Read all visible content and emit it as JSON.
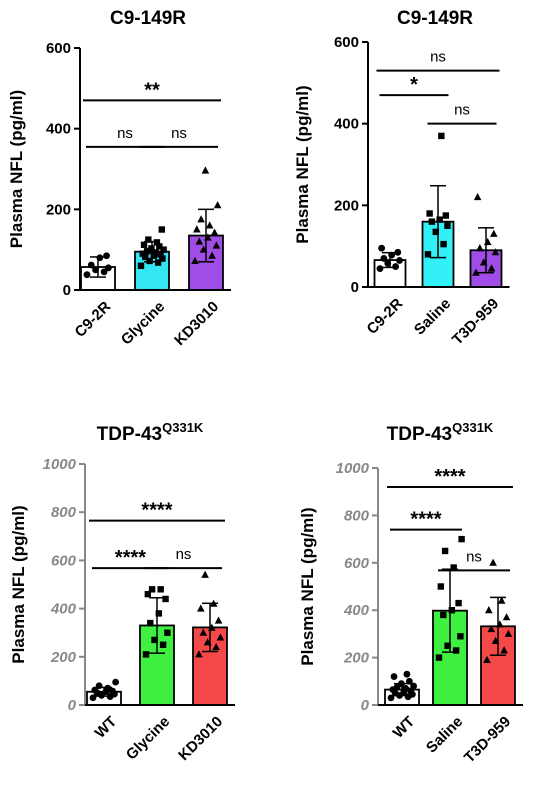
{
  "chart_data": [
    {
      "type": "bar",
      "title": "C9-149R",
      "title_sup": "",
      "ylabel": "Plasma NFL (pg/ml)",
      "ylim": [
        0,
        600
      ],
      "yticks": [
        "0",
        "200",
        "400",
        "600"
      ],
      "axis_color": "#000000",
      "categories": [
        "C9-2R",
        "Glycine",
        "KD3010"
      ],
      "colors": [
        "#ffffff",
        "#33e6f2",
        "#a04ce6"
      ],
      "markers": [
        "circle",
        "square",
        "triangle"
      ],
      "means": [
        57,
        95,
        135
      ],
      "sd": [
        25,
        25,
        65
      ],
      "points": [
        [
          38,
          45,
          50,
          55,
          62,
          80,
          85
        ],
        [
          60,
          68,
          72,
          78,
          82,
          85,
          88,
          90,
          93,
          96,
          100,
          103,
          108,
          112,
          118,
          125,
          150
        ],
        [
          72,
          85,
          100,
          110,
          120,
          130,
          142,
          150,
          160,
          175,
          210,
          296
        ]
      ],
      "comparisons": [
        {
          "from": 0,
          "to": 2,
          "y": 470,
          "label": "**"
        },
        {
          "from": 0,
          "to": 1,
          "y": 355,
          "label": "ns"
        },
        {
          "from": 1,
          "to": 2,
          "y": 355,
          "label": "ns"
        }
      ]
    },
    {
      "type": "bar",
      "title": "C9-149R",
      "title_sup": "",
      "ylabel": "Plasma NFL (pg/ml)",
      "ylim": [
        0,
        600
      ],
      "yticks": [
        "0",
        "200",
        "400",
        "600"
      ],
      "axis_color": "#000000",
      "categories": [
        "C9-2R",
        "Saline",
        "T3D-959"
      ],
      "colors": [
        "#ffffff",
        "#33f0f7",
        "#a04ce6"
      ],
      "markers": [
        "circle",
        "square",
        "triangle"
      ],
      "means": [
        66,
        160,
        90
      ],
      "sd": [
        18,
        88,
        55
      ],
      "points": [
        [
          45,
          50,
          58,
          65,
          70,
          78,
          85,
          95
        ],
        [
          80,
          105,
          135,
          150,
          160,
          165,
          175,
          180,
          370
        ],
        [
          35,
          45,
          60,
          85,
          95,
          110,
          130,
          220
        ]
      ],
      "comparisons": [
        {
          "from": 0,
          "to": 2,
          "y": 530,
          "label": "ns"
        },
        {
          "from": 0,
          "to": 1,
          "y": 470,
          "label": "*"
        },
        {
          "from": 1,
          "to": 2,
          "y": 400,
          "label": "ns"
        }
      ]
    },
    {
      "type": "bar",
      "title": "TDP-43",
      "title_sup": "Q331K",
      "ylabel": "Plasma NFL (pg/ml)",
      "ylim": [
        0,
        1000
      ],
      "yticks": [
        "0",
        "200",
        "400",
        "600",
        "800",
        "1000"
      ],
      "axis_color": "#888888",
      "categories": [
        "WT",
        "Glycine",
        "KD3010"
      ],
      "colors": [
        "#ffffff",
        "#3ff040",
        "#f54848"
      ],
      "markers": [
        "circle",
        "square",
        "triangle"
      ],
      "means": [
        55,
        330,
        322
      ],
      "sd": [
        18,
        115,
        100
      ],
      "points": [
        [
          30,
          35,
          40,
          45,
          50,
          55,
          58,
          62,
          70,
          80,
          95
        ],
        [
          210,
          250,
          270,
          300,
          340,
          380,
          440,
          460,
          480,
          480
        ],
        [
          210,
          240,
          260,
          280,
          300,
          320,
          350,
          400,
          420,
          540
        ]
      ],
      "comparisons": [
        {
          "from": 0,
          "to": 2,
          "y": 765,
          "label": "****"
        },
        {
          "from": 0,
          "to": 1,
          "y": 568,
          "label": "****"
        },
        {
          "from": 1,
          "to": 2,
          "y": 568,
          "label": "ns"
        }
      ]
    },
    {
      "type": "bar",
      "title": "TDP-43",
      "title_sup": "Q331K",
      "ylabel": "Plasma NFL (pg/ml)",
      "ylim": [
        0,
        1000
      ],
      "yticks": [
        "0",
        "200",
        "400",
        "600",
        "800",
        "1000"
      ],
      "axis_color": "#888888",
      "categories": [
        "WT",
        "Saline",
        "T3D-959"
      ],
      "colors": [
        "#ffffff",
        "#3ff040",
        "#f54848"
      ],
      "markers": [
        "circle",
        "square",
        "triangle"
      ],
      "means": [
        65,
        398,
        332
      ],
      "sd": [
        25,
        175,
        122
      ],
      "points": [
        [
          30,
          35,
          40,
          45,
          50,
          55,
          60,
          65,
          70,
          75,
          80,
          90,
          100,
          120,
          130
        ],
        [
          200,
          230,
          250,
          290,
          380,
          400,
          430,
          500,
          580,
          650,
          700
        ],
        [
          190,
          230,
          270,
          300,
          320,
          340,
          370,
          400,
          440,
          600
        ]
      ],
      "comparisons": [
        {
          "from": 0,
          "to": 2,
          "y": 920,
          "label": "****"
        },
        {
          "from": 0,
          "to": 1,
          "y": 740,
          "label": "****"
        },
        {
          "from": 1,
          "to": 2,
          "y": 568,
          "label": "ns"
        }
      ]
    }
  ]
}
